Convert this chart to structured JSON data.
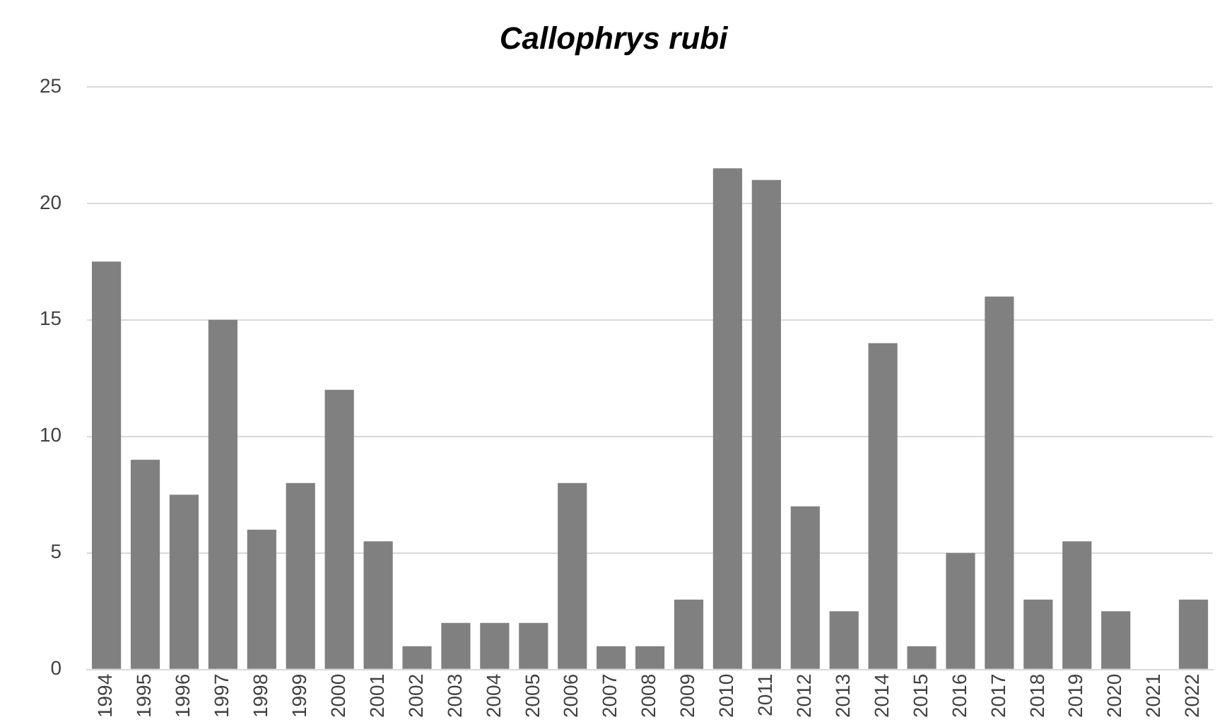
{
  "chart_data": {
    "type": "bar",
    "title": "Callophrys rubi",
    "categories": [
      "1994",
      "1995",
      "1996",
      "1997",
      "1998",
      "1999",
      "2000",
      "2001",
      "2002",
      "2003",
      "2004",
      "2005",
      "2006",
      "2007",
      "2008",
      "2009",
      "2010",
      "2011",
      "2012",
      "2013",
      "2014",
      "2015",
      "2016",
      "2017",
      "2018",
      "2019",
      "2020",
      "2021",
      "2022"
    ],
    "values": [
      17.5,
      9,
      7.5,
      15,
      6,
      8,
      12,
      5.5,
      1,
      2,
      2,
      2,
      8,
      1,
      1,
      3,
      21.5,
      21,
      7,
      2.5,
      14,
      1,
      5,
      16,
      3,
      5.5,
      2.5,
      0,
      3
    ],
    "color": "#808080",
    "ylim": [
      0,
      25
    ],
    "yticks": [
      0,
      5,
      10,
      15,
      20,
      25
    ],
    "grid": "y"
  }
}
